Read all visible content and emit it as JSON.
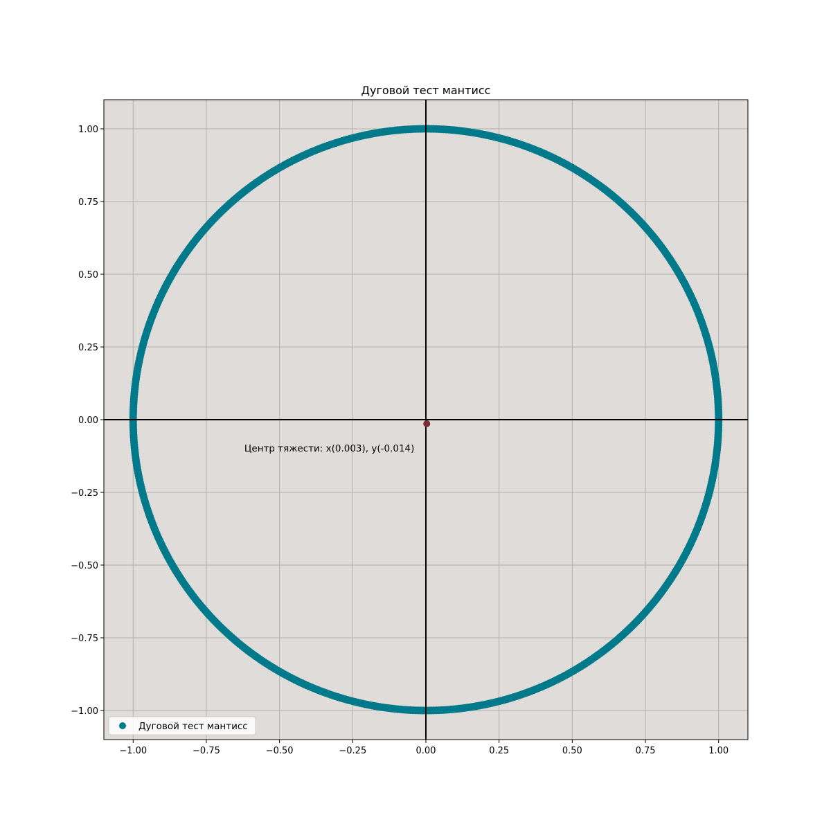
{
  "chart_data": {
    "type": "scatter",
    "title": "Дуговой тест мантисс",
    "xlabel": "",
    "ylabel": "",
    "xlim": [
      -1.1,
      1.1
    ],
    "ylim": [
      -1.1,
      1.1
    ],
    "x_ticks": [
      -1.0,
      -0.75,
      -0.5,
      -0.25,
      0.0,
      0.25,
      0.5,
      0.75,
      1.0
    ],
    "y_ticks": [
      -1.0,
      -0.75,
      -0.5,
      -0.25,
      0.0,
      0.25,
      0.5,
      0.75,
      1.0
    ],
    "x_tick_labels": [
      "−1.00",
      "−0.75",
      "−0.50",
      "−0.25",
      "0.00",
      "0.25",
      "0.50",
      "0.75",
      "1.00"
    ],
    "y_tick_labels": [
      "−1.00",
      "−0.75",
      "−0.50",
      "−0.25",
      "0.00",
      "0.25",
      "0.50",
      "0.75",
      "1.00"
    ],
    "grid": true,
    "background_color": "#e0dcd9",
    "axis_lines": {
      "x": 0,
      "y": 0,
      "color": "#000000"
    },
    "series": [
      {
        "name": "Дуговой тест мантисс",
        "kind": "points_on_unit_circle",
        "radius": 1.0,
        "color": "#007a8a"
      }
    ],
    "centroid": {
      "x": 0.003,
      "y": -0.014,
      "color": "#7a2e3a"
    },
    "annotation": {
      "text": "Центр тяжести: x(0.003), y(-0.014)",
      "x": -0.62,
      "y": -0.11
    },
    "legend": {
      "placement": "bottom-left",
      "entries": [
        "Дуговой тест мантисс"
      ]
    }
  }
}
